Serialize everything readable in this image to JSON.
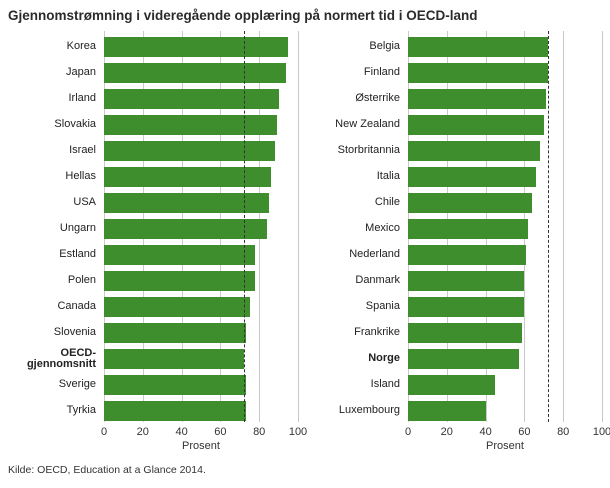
{
  "title": "Gjennomstrømning i videregående opplæring på normert tid i OECD-land",
  "source": "Kilde: OECD, Education at a Glance 2014.",
  "colors": {
    "bar": "#3e8e2d",
    "grid": "#c9c9c9",
    "reference_line": "#333333"
  },
  "chart_data": [
    {
      "type": "bar",
      "orientation": "horizontal",
      "xlabel": "Prosent",
      "xlim": [
        0,
        100
      ],
      "ticks": [
        0,
        20,
        40,
        60,
        80,
        100
      ],
      "grid": true,
      "reference_line": 72,
      "reference_line_meaning": "OECD-gjennomsnitt",
      "rows": [
        {
          "label": "Korea",
          "value": 95,
          "bold": false
        },
        {
          "label": "Japan",
          "value": 94,
          "bold": false
        },
        {
          "label": "Irland",
          "value": 90,
          "bold": false
        },
        {
          "label": "Slovakia",
          "value": 89,
          "bold": false
        },
        {
          "label": "Israel",
          "value": 88,
          "bold": false
        },
        {
          "label": "Hellas",
          "value": 86,
          "bold": false
        },
        {
          "label": "USA",
          "value": 85,
          "bold": false
        },
        {
          "label": "Ungarn",
          "value": 84,
          "bold": false
        },
        {
          "label": "Estland",
          "value": 78,
          "bold": false
        },
        {
          "label": "Polen",
          "value": 78,
          "bold": false
        },
        {
          "label": "Canada",
          "value": 75,
          "bold": false
        },
        {
          "label": "Slovenia",
          "value": 73,
          "bold": false
        },
        {
          "label": "OECD-gjennomsnitt",
          "value": 72,
          "bold": true
        },
        {
          "label": "Sverige",
          "value": 73,
          "bold": false
        },
        {
          "label": "Tyrkia",
          "value": 73,
          "bold": false
        }
      ]
    },
    {
      "type": "bar",
      "orientation": "horizontal",
      "xlabel": "Prosent",
      "xlim": [
        0,
        100
      ],
      "ticks": [
        0,
        20,
        40,
        60,
        80,
        100
      ],
      "grid": true,
      "reference_line": 72,
      "reference_line_meaning": "OECD-gjennomsnitt",
      "rows": [
        {
          "label": "Belgia",
          "value": 72,
          "bold": false
        },
        {
          "label": "Finland",
          "value": 72,
          "bold": false
        },
        {
          "label": "Østerrike",
          "value": 71,
          "bold": false
        },
        {
          "label": "New Zealand",
          "value": 70,
          "bold": false
        },
        {
          "label": "Storbritannia",
          "value": 68,
          "bold": false
        },
        {
          "label": "Italia",
          "value": 66,
          "bold": false
        },
        {
          "label": "Chile",
          "value": 64,
          "bold": false
        },
        {
          "label": "Mexico",
          "value": 62,
          "bold": false
        },
        {
          "label": "Nederland",
          "value": 61,
          "bold": false
        },
        {
          "label": "Danmark",
          "value": 60,
          "bold": false
        },
        {
          "label": "Spania",
          "value": 60,
          "bold": false
        },
        {
          "label": "Frankrike",
          "value": 59,
          "bold": false
        },
        {
          "label": "Norge",
          "value": 57,
          "bold": true
        },
        {
          "label": "Island",
          "value": 45,
          "bold": false
        },
        {
          "label": "Luxembourg",
          "value": 40,
          "bold": false
        }
      ]
    }
  ]
}
